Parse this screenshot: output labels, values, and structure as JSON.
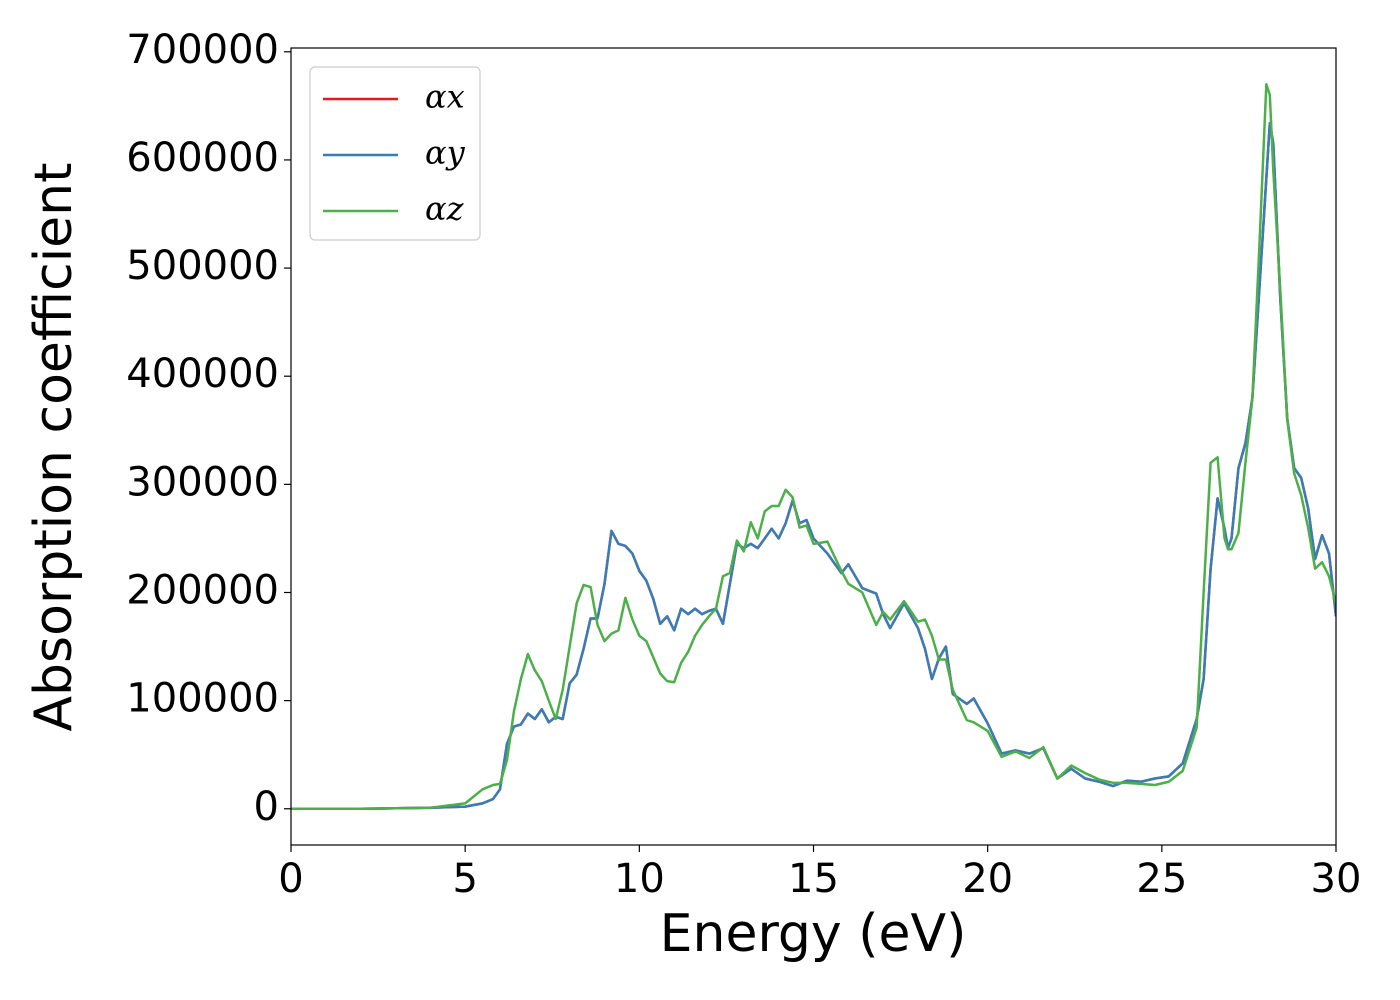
{
  "chart_data": {
    "type": "line",
    "xlabel": "Energy (eV)",
    "ylabel": "Absorption coefficient",
    "xlim": [
      0,
      30
    ],
    "ylim": [
      -33500,
      703500
    ],
    "xticks": [
      0,
      5,
      10,
      15,
      20,
      25,
      30
    ],
    "yticks": [
      0,
      100000,
      200000,
      300000,
      400000,
      500000,
      600000,
      700000
    ],
    "grid": false,
    "legend": "upper left",
    "x": [
      0,
      1,
      2,
      3,
      4,
      5,
      5.5,
      5.8,
      6.0,
      6.2,
      6.4,
      6.6,
      6.8,
      7.0,
      7.2,
      7.4,
      7.6,
      7.8,
      8.0,
      8.2,
      8.4,
      8.6,
      8.8,
      9.0,
      9.2,
      9.4,
      9.6,
      9.8,
      10.0,
      10.2,
      10.4,
      10.6,
      10.8,
      11.0,
      11.2,
      11.4,
      11.6,
      11.8,
      12.0,
      12.2,
      12.4,
      12.6,
      12.8,
      13.0,
      13.2,
      13.4,
      13.6,
      13.8,
      14.0,
      14.2,
      14.4,
      14.6,
      14.8,
      15.0,
      15.4,
      15.8,
      16.0,
      16.4,
      16.8,
      17.0,
      17.2,
      17.6,
      18.0,
      18.2,
      18.4,
      18.6,
      18.8,
      19.0,
      19.4,
      19.6,
      20.0,
      20.4,
      20.8,
      21.2,
      21.6,
      22.0,
      22.4,
      22.8,
      23.2,
      23.6,
      24.0,
      24.4,
      24.8,
      25.2,
      25.6,
      26.0,
      26.2,
      26.4,
      26.6,
      26.8,
      26.9,
      27.0,
      27.2,
      27.4,
      27.6,
      27.8,
      28.0,
      28.1,
      28.2,
      28.4,
      28.6,
      28.8,
      29.0,
      29.2,
      29.4,
      29.6,
      29.8,
      30.0
    ],
    "series": [
      {
        "name": "αx",
        "color": "#e41a1c",
        "values": [
          0,
          0,
          0,
          500,
          1000,
          2000,
          5000,
          9000,
          18000,
          60000,
          76000,
          78000,
          88000,
          83000,
          92000,
          80000,
          85000,
          83000,
          116000,
          124000,
          148000,
          176000,
          176000,
          208000,
          257000,
          245000,
          243000,
          236000,
          220000,
          211000,
          194000,
          171000,
          178000,
          165000,
          185000,
          180000,
          185000,
          180000,
          183000,
          185000,
          171000,
          208000,
          245000,
          241000,
          245000,
          241000,
          250000,
          259000,
          250000,
          264000,
          285000,
          264000,
          267000,
          250000,
          236000,
          218000,
          226000,
          204000,
          199000,
          180000,
          167000,
          190000,
          167000,
          148000,
          120000,
          139000,
          150000,
          106000,
          97000,
          102000,
          79000,
          51000,
          54000,
          51000,
          56000,
          28000,
          37000,
          28000,
          25000,
          21000,
          26000,
          25000,
          28000,
          30000,
          42000,
          83000,
          120000,
          222000,
          287000,
          259000,
          241000,
          250000,
          315000,
          338000,
          380000,
          481000,
          583000,
          634000,
          615000,
          472000,
          361000,
          315000,
          306000,
          278000,
          231000,
          253000,
          236000,
          178000
        ]
      },
      {
        "name": "αy",
        "color": "#377eb8",
        "values": [
          0,
          0,
          0,
          500,
          1000,
          2000,
          5000,
          9000,
          18000,
          60000,
          76000,
          78000,
          88000,
          83000,
          92000,
          80000,
          85000,
          83000,
          116000,
          124000,
          148000,
          176000,
          176000,
          208000,
          257000,
          245000,
          243000,
          236000,
          220000,
          211000,
          194000,
          171000,
          178000,
          165000,
          185000,
          180000,
          185000,
          180000,
          183000,
          185000,
          171000,
          208000,
          245000,
          241000,
          245000,
          241000,
          250000,
          259000,
          250000,
          264000,
          285000,
          264000,
          267000,
          250000,
          236000,
          218000,
          226000,
          204000,
          199000,
          180000,
          167000,
          190000,
          167000,
          148000,
          120000,
          139000,
          150000,
          106000,
          97000,
          102000,
          79000,
          51000,
          54000,
          51000,
          56000,
          28000,
          37000,
          28000,
          25000,
          21000,
          26000,
          25000,
          28000,
          30000,
          42000,
          83000,
          120000,
          222000,
          287000,
          259000,
          241000,
          250000,
          315000,
          338000,
          380000,
          481000,
          583000,
          634000,
          615000,
          472000,
          361000,
          315000,
          306000,
          278000,
          231000,
          253000,
          236000,
          178000
        ]
      },
      {
        "name": "αz",
        "color": "#4daf4a",
        "values": [
          0,
          0,
          0,
          500,
          1000,
          5000,
          18000,
          22000,
          23000,
          45000,
          90000,
          120000,
          143000,
          128000,
          118000,
          100000,
          83000,
          110000,
          150000,
          190000,
          207000,
          205000,
          170000,
          155000,
          162000,
          165000,
          195000,
          175000,
          160000,
          155000,
          140000,
          125000,
          118000,
          117000,
          135000,
          145000,
          160000,
          170000,
          178000,
          185000,
          215000,
          218000,
          248000,
          238000,
          265000,
          250000,
          275000,
          280000,
          280000,
          295000,
          288000,
          260000,
          262000,
          245000,
          247000,
          220000,
          208000,
          200000,
          170000,
          182000,
          175000,
          192000,
          173000,
          175000,
          160000,
          138000,
          138000,
          110000,
          82000,
          80000,
          72000,
          48000,
          53000,
          47000,
          57000,
          28000,
          40000,
          33000,
          27000,
          24000,
          24000,
          23000,
          22000,
          25000,
          35000,
          75000,
          200000,
          320000,
          325000,
          250000,
          240000,
          240000,
          255000,
          320000,
          380000,
          520000,
          670000,
          660000,
          590000,
          480000,
          360000,
          310000,
          290000,
          260000,
          222000,
          228000,
          215000,
          190000
        ]
      }
    ]
  }
}
